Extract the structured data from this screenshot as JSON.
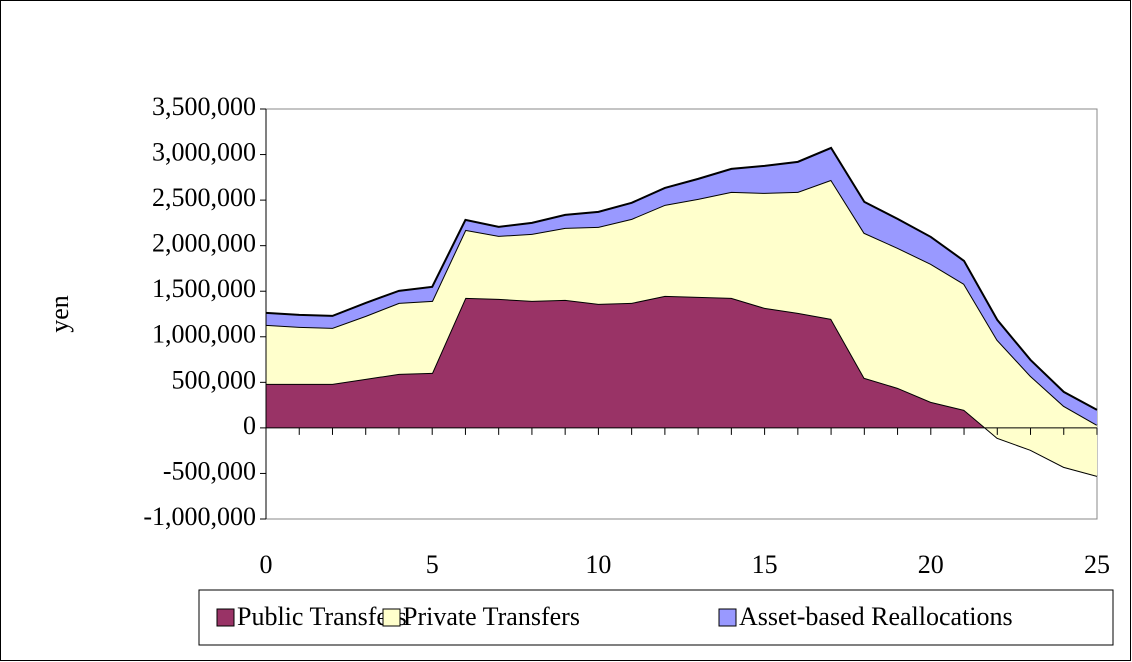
{
  "chart_data": {
    "type": "stacked_area",
    "y_label": "yen",
    "x": [
      0,
      1,
      2,
      3,
      4,
      5,
      6,
      7,
      8,
      9,
      10,
      11,
      12,
      13,
      14,
      15,
      16,
      17,
      18,
      19,
      20,
      21,
      22,
      23,
      24,
      25
    ],
    "series": [
      {
        "name": "Public Transfers",
        "color": "#993366",
        "values": [
          483000,
          483000,
          483000,
          538000,
          593000,
          604000,
          1427000,
          1416000,
          1394000,
          1405000,
          1361000,
          1372000,
          1449000,
          1438000,
          1427000,
          1317000,
          1262000,
          1196000,
          549000,
          439000,
          285000,
          198000,
          -110000,
          -241000,
          -428000,
          -527000
        ]
      },
      {
        "name": "Private Transfers",
        "color": "#FFFFCC",
        "values": [
          648000,
          626000,
          615000,
          691000,
          779000,
          790000,
          746000,
          691000,
          735000,
          790000,
          845000,
          922000,
          999000,
          1075000,
          1163000,
          1262000,
          1328000,
          1526000,
          1591000,
          1537000,
          1515000,
          1383000,
          1076000,
          812000,
          669000,
          560000
        ]
      },
      {
        "name": "Asset-based Reallocations",
        "color": "#9999FF",
        "values": [
          131000,
          131000,
          131000,
          143000,
          132000,
          154000,
          110000,
          99000,
          121000,
          143000,
          165000,
          176000,
          186000,
          220000,
          253000,
          297000,
          330000,
          351000,
          341000,
          318000,
          296000,
          252000,
          219000,
          175000,
          154000,
          165000
        ]
      }
    ],
    "xlim": [
      0,
      25
    ],
    "xticks": [
      0,
      5,
      10,
      15,
      20,
      25
    ],
    "ylim": [
      -1000000,
      3500000
    ],
    "yticks": [
      {
        "value": -1000000,
        "label": "-1,000,000"
      },
      {
        "value": -500000,
        "label": "-500,000"
      },
      0,
      {
        "value": 500000,
        "label": "500,000"
      },
      {
        "value": 1000000,
        "label": "1,000,000"
      },
      {
        "value": 1500000,
        "label": "1,500,000"
      },
      {
        "value": 2000000,
        "label": "2,000,000"
      },
      {
        "value": 2500000,
        "label": "2,500,000"
      },
      {
        "value": 3000000,
        "label": "3,000,000"
      },
      {
        "value": 3500000,
        "label": "3,500,000"
      }
    ],
    "legend": "bottom"
  }
}
